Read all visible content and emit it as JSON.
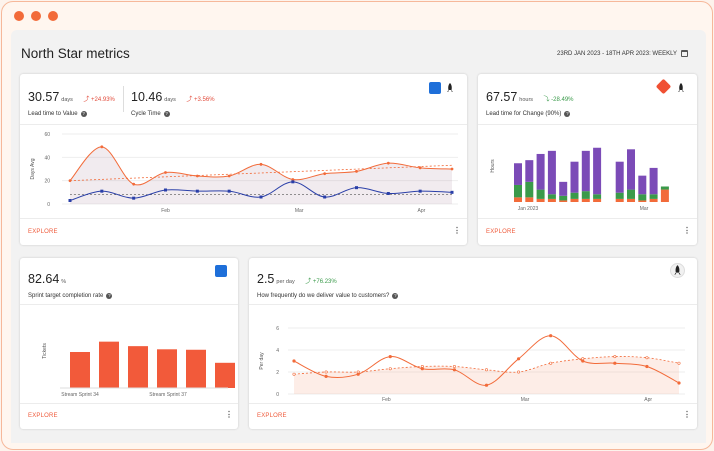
{
  "window_controls": [
    "close",
    "minimize",
    "maximize"
  ],
  "page_title": "North Star metrics",
  "date_range": "23RD JAN 2023 - 18TH APR 2023: WEEKLY",
  "explore_label": "EXPLORE",
  "colors": {
    "accent": "#f26b3a",
    "brand_blue": "#1e6fd9",
    "purple": "#7b4bb7",
    "green": "#3a9a4a"
  },
  "card1": {
    "metric1": {
      "value": "30.57",
      "unit": "days",
      "delta": "+24.93%",
      "label": "Lead time to Value"
    },
    "metric2": {
      "value": "10.46",
      "unit": "days",
      "delta": "+3.56%",
      "label": "Cycle Time"
    },
    "icons": [
      "jira-icon",
      "rocket-icon"
    ]
  },
  "card2": {
    "metric": {
      "value": "67.57",
      "unit": "hours",
      "delta": "-28.49%",
      "label": "Lead time for Change (90%)"
    },
    "icons": [
      "git-icon",
      "rocket-icon"
    ]
  },
  "card3": {
    "metric": {
      "value": "82.64",
      "unit": "%",
      "label": "Sprint target completion rate"
    },
    "icons": [
      "jira-icon"
    ]
  },
  "card4": {
    "metric": {
      "value": "2.5",
      "unit": "per day",
      "delta": "+76.23%",
      "label": "How frequently do we deliver value to customers?"
    },
    "icons": [
      "rocket-icon"
    ]
  },
  "chart_data": [
    {
      "type": "line",
      "ylabel": "Days Avg",
      "yticks": [
        "60",
        "40",
        "20",
        "0"
      ],
      "ylim": [
        0,
        60
      ],
      "xticks": [
        "Feb",
        "Mar",
        "Apr"
      ],
      "series": [
        {
          "color": "#f26b3a",
          "values": [
            20,
            49,
            17,
            27,
            24,
            24,
            34,
            21,
            26,
            28,
            35,
            31,
            30
          ]
        },
        {
          "color": "#2a3fa8",
          "values": [
            3,
            11,
            5,
            12,
            11,
            11,
            6,
            19,
            6,
            14,
            9,
            11,
            10
          ]
        }
      ]
    },
    {
      "type": "bar",
      "ylabel": "Hours",
      "xticks": [
        "Jan 2023",
        "Mar"
      ],
      "stacked": true,
      "series_colors": [
        "#f26b3a",
        "#3a9a4a",
        "#7b4bb7"
      ],
      "values": [
        [
          3,
          8,
          14
        ],
        [
          3,
          10,
          14
        ],
        [
          2,
          6,
          23
        ],
        [
          2,
          3,
          28
        ],
        [
          1,
          3,
          9
        ],
        [
          2,
          4,
          20
        ],
        [
          2,
          5,
          26
        ],
        [
          2,
          3,
          30
        ],
        [
          0,
          0,
          0
        ],
        [
          2,
          4,
          20
        ],
        [
          2,
          6,
          26
        ],
        [
          1,
          4,
          12
        ],
        [
          2,
          3,
          17
        ],
        [
          8,
          2,
          0
        ]
      ]
    },
    {
      "type": "bar",
      "ylabel": "Tickets",
      "xticks": [
        "Stream Sprint 34",
        "Stream Sprint 37"
      ],
      "values": [
        80,
        103,
        93,
        86,
        85,
        56
      ]
    },
    {
      "type": "area",
      "ylabel": "Per day",
      "yticks": [
        "6",
        "4",
        "2",
        "0"
      ],
      "ylim": [
        0,
        6
      ],
      "xticks": [
        "Feb",
        "Mar",
        "Apr"
      ],
      "series": [
        {
          "color": "#f26b3a",
          "values": [
            3.0,
            1.6,
            1.8,
            3.4,
            2.3,
            2.2,
            0.8,
            3.2,
            5.3,
            3.0,
            2.8,
            2.5,
            1.0
          ]
        },
        {
          "color": "#f26b3a",
          "dashed": true,
          "values": [
            1.8,
            2.0,
            2.0,
            2.3,
            2.5,
            2.5,
            2.2,
            2.0,
            2.8,
            3.2,
            3.4,
            3.3,
            2.8
          ]
        }
      ]
    }
  ]
}
